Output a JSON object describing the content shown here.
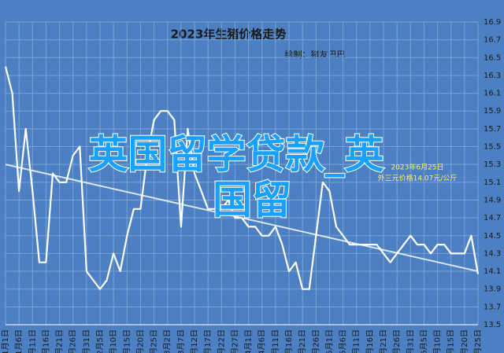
{
  "chart_data": {
    "type": "line",
    "title": "2023年生猪价格走势",
    "subtitle": "绘制：猪友巴巴",
    "annotation": [
      "2023年6月25日",
      "外三元价格14.07元/公斤"
    ],
    "watermark": [
      "英国留学贷款_英",
      "国留"
    ],
    "categories": [
      "1月1日",
      null,
      "1月6日",
      null,
      "1月11日",
      null,
      "1月16日",
      null,
      "1月21日",
      null,
      "1月26日",
      null,
      "1月31日",
      null,
      "2月5日",
      null,
      "2月10日",
      null,
      "2月15日",
      null,
      "2月20日",
      null,
      "2月25日",
      null,
      "3月2日",
      null,
      "3月7日",
      null,
      "3月12日",
      null,
      "3月17日",
      null,
      "3月22日",
      null,
      "3月27日",
      null,
      "4月1日",
      null,
      "4月6日",
      null,
      "4月11日",
      null,
      "4月16日",
      null,
      "4月21日",
      null,
      "4月26日",
      null,
      "5月1日",
      null,
      "5月6日",
      null,
      "5月11日",
      null,
      "5月16日",
      null,
      "5月21日",
      null,
      "5月26日",
      null,
      "5月31日",
      null,
      "6月5日",
      null,
      "6月10日",
      null,
      "6月15日",
      null,
      "6月20日",
      null,
      "6月25日"
    ],
    "series": [
      {
        "color": "#ffffff",
        "values": [
          16.4,
          16.1,
          15.0,
          15.7,
          15.0,
          14.2,
          14.2,
          15.2,
          15.1,
          15.1,
          15.4,
          15.5,
          14.1,
          14.0,
          13.9,
          14.0,
          14.3,
          14.1,
          14.5,
          14.8,
          14.8,
          15.4,
          15.8,
          15.9,
          15.9,
          15.8,
          14.6,
          15.7,
          15.2,
          15.0,
          14.8,
          14.8,
          14.8,
          14.9,
          14.7,
          14.7,
          14.6,
          14.6,
          14.5,
          14.5,
          14.6,
          14.4,
          14.1,
          14.2,
          13.9,
          13.9,
          14.5,
          15.1,
          15.0,
          14.6,
          14.5,
          14.4,
          14.4,
          14.4,
          14.4,
          14.4,
          14.3,
          14.2,
          14.3,
          14.4,
          14.5,
          14.4,
          14.4,
          14.3,
          14.4,
          14.4,
          14.3,
          14.3,
          14.3,
          14.5,
          14.07
        ]
      }
    ],
    "trendline": [
      15.3,
      14.1
    ],
    "ylim": [
      13.5,
      16.9
    ],
    "yticks": [
      13.5,
      13.7,
      13.9,
      14.1,
      14.3,
      14.5,
      14.7,
      14.9,
      15.1,
      15.3,
      15.5,
      15.7,
      15.9,
      16.1,
      16.3,
      16.5,
      16.7,
      16.9
    ],
    "grid": true
  }
}
